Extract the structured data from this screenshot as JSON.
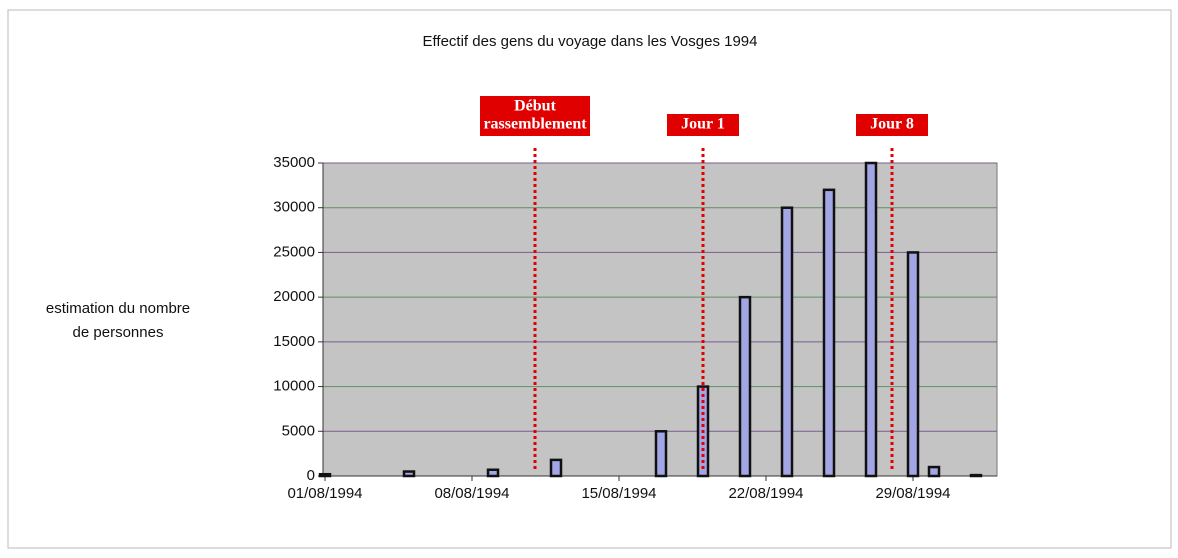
{
  "chart_data": {
    "type": "bar",
    "title": "Effectif des gens du voyage dans les Vosges 1994",
    "ylabel": [
      "estimation du nombre",
      "de personnes"
    ],
    "x": [
      "01/08/1994",
      "05/08/1994",
      "09/08/1994",
      "12/08/1994",
      "17/08/1994",
      "19/08/1994",
      "21/08/1994",
      "23/08/1994",
      "25/08/1994",
      "27/08/1994",
      "29/08/1994",
      "30/08/1994",
      "01/09/1994"
    ],
    "values": [
      200,
      500,
      700,
      1800,
      5000,
      10000,
      20000,
      30000,
      32000,
      35000,
      25000,
      1000,
      100
    ],
    "color": "#a2a6e4",
    "xlim": [
      "01/08/1994",
      "02/09/1994"
    ],
    "xticks": [
      "01/08/1994",
      "08/08/1994",
      "15/08/1994",
      "22/08/1994",
      "29/08/1994"
    ],
    "ylim": [
      0,
      35000
    ],
    "yticks": [
      0,
      5000,
      10000,
      15000,
      20000,
      25000,
      30000,
      35000
    ],
    "grid": true,
    "annotations": [
      {
        "x": "11/08/1994",
        "text": [
          "Début",
          "rassemblement"
        ],
        "color": "#e00000"
      },
      {
        "x": "19/08/1994",
        "text": [
          "Jour 1"
        ],
        "color": "#e00000"
      },
      {
        "x": "28/08/1994",
        "text": [
          "Jour 8"
        ],
        "color": "#e00000"
      }
    ]
  }
}
